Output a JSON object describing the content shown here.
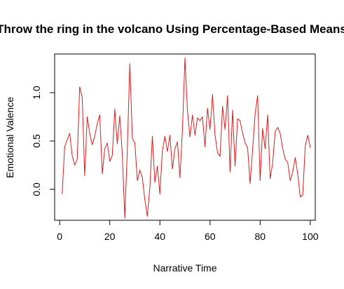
{
  "chart_data": {
    "type": "line",
    "title": "Throw the ring in the volcano Using Percentage-Based Means",
    "xlabel": "Narrative Time",
    "ylabel": "Emotional Valence",
    "xlim": [
      -2,
      102
    ],
    "ylim": [
      -0.32,
      1.4
    ],
    "x_ticks": [
      0,
      20,
      40,
      60,
      80,
      100
    ],
    "x_tick_labels": [
      "0",
      "20",
      "40",
      "60",
      "80",
      "100"
    ],
    "y_ticks": [
      0.0,
      0.5,
      1.0
    ],
    "y_tick_labels": [
      "0.0",
      "0.5",
      "1.0"
    ],
    "grid": false,
    "series": [
      {
        "color": "#e41a1c",
        "x": [
          1,
          2,
          3,
          4,
          5,
          6,
          7,
          8,
          9,
          10,
          11,
          12,
          13,
          14,
          15,
          16,
          17,
          18,
          19,
          20,
          21,
          22,
          23,
          24,
          25,
          26,
          27,
          28,
          29,
          30,
          31,
          32,
          33,
          34,
          35,
          36,
          37,
          38,
          39,
          40,
          41,
          42,
          43,
          44,
          45,
          46,
          47,
          48,
          49,
          50,
          51,
          52,
          53,
          54,
          55,
          56,
          57,
          58,
          59,
          60,
          61,
          62,
          63,
          64,
          65,
          66,
          67,
          68,
          69,
          70,
          71,
          72,
          73,
          74,
          75,
          76,
          77,
          78,
          79,
          80,
          81,
          82,
          83,
          84,
          85,
          86,
          87,
          88,
          89,
          90,
          91,
          92,
          93,
          94,
          95,
          96,
          97,
          98,
          99,
          100
        ],
        "values": [
          -0.05,
          0.44,
          0.51,
          0.58,
          0.35,
          0.25,
          0.31,
          1.06,
          0.95,
          0.14,
          0.75,
          0.58,
          0.46,
          0.55,
          0.68,
          0.77,
          0.16,
          0.42,
          0.48,
          0.29,
          0.35,
          0.83,
          0.47,
          0.76,
          0.36,
          -0.3,
          0.41,
          1.3,
          0.53,
          0.48,
          0.09,
          0.2,
          0.12,
          -0.11,
          -0.28,
          0.02,
          0.55,
          0.07,
          0.24,
          -0.05,
          0.4,
          0.55,
          0.39,
          0.56,
          0.21,
          0.42,
          0.49,
          0.12,
          0.62,
          1.36,
          0.81,
          0.54,
          0.77,
          0.56,
          0.74,
          0.71,
          0.75,
          0.44,
          0.84,
          0.62,
          0.98,
          0.56,
          0.38,
          0.34,
          0.86,
          0.62,
          0.97,
          0.18,
          0.82,
          0.24,
          0.73,
          0.71,
          0.58,
          0.48,
          0.43,
          0.06,
          0.41,
          0.78,
          0.97,
          0.09,
          0.63,
          0.42,
          0.77,
          0.11,
          0.27,
          0.6,
          0.64,
          0.58,
          0.42,
          0.31,
          0.28,
          0.09,
          0.18,
          0.33,
          0.16,
          -0.08,
          -0.06,
          0.45,
          0.56,
          0.43
        ]
      }
    ]
  }
}
